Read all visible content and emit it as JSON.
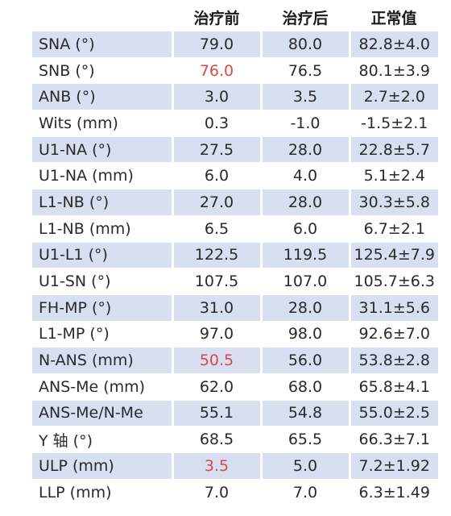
{
  "header": {
    "label": "",
    "pre": "治疗前",
    "post": "治疗后",
    "normal": "正常值"
  },
  "rows": [
    {
      "label": "SNA (°)",
      "pre": "79.0",
      "post": "80.0",
      "normal": "82.8±4.0",
      "shaded": true,
      "highlight_pre": false
    },
    {
      "label": "SNB (°)",
      "pre": "76.0",
      "post": "76.5",
      "normal": "80.1±3.9",
      "shaded": false,
      "highlight_pre": true
    },
    {
      "label": "ANB (°)",
      "pre": "3.0",
      "post": "3.5",
      "normal": "2.7±2.0",
      "shaded": true,
      "highlight_pre": false
    },
    {
      "label": "Wits (mm)",
      "pre": "0.3",
      "post": "-1.0",
      "normal": "-1.5±2.1",
      "shaded": false,
      "highlight_pre": false
    },
    {
      "label": "U1-NA (°)",
      "pre": "27.5",
      "post": "28.0",
      "normal": "22.8±5.7",
      "shaded": true,
      "highlight_pre": false
    },
    {
      "label": "U1-NA (mm)",
      "pre": "6.0",
      "post": "4.0",
      "normal": "5.1±2.4",
      "shaded": false,
      "highlight_pre": false
    },
    {
      "label": "L1-NB (°)",
      "pre": "27.0",
      "post": "28.0",
      "normal": "30.3±5.8",
      "shaded": true,
      "highlight_pre": false
    },
    {
      "label": "L1-NB (mm)",
      "pre": "6.5",
      "post": "6.0",
      "normal": "6.7±2.1",
      "shaded": false,
      "highlight_pre": false
    },
    {
      "label": "U1-L1 (°)",
      "pre": "122.5",
      "post": "119.5",
      "normal": "125.4±7.9",
      "shaded": true,
      "highlight_pre": false
    },
    {
      "label": "U1-SN (°)",
      "pre": "107.5",
      "post": "107.0",
      "normal": "105.7±6.3",
      "shaded": false,
      "highlight_pre": false
    },
    {
      "label": "FH-MP (°)",
      "pre": "31.0",
      "post": "28.0",
      "normal": "31.1±5.6",
      "shaded": true,
      "highlight_pre": false
    },
    {
      "label": "L1-MP (°)",
      "pre": "97.0",
      "post": "98.0",
      "normal": "92.6±7.0",
      "shaded": false,
      "highlight_pre": false
    },
    {
      "label": "N-ANS (mm)",
      "pre": "50.5",
      "post": "56.0",
      "normal": "53.8±2.8",
      "shaded": true,
      "highlight_pre": true
    },
    {
      "label": "ANS-Me (mm)",
      "pre": "62.0",
      "post": "68.0",
      "normal": "65.8±4.1",
      "shaded": false,
      "highlight_pre": false
    },
    {
      "label": "ANS-Me/N-Me",
      "pre": "55.1",
      "post": "54.8",
      "normal": "55.0±2.5",
      "shaded": true,
      "highlight_pre": false
    },
    {
      "label": "Y 轴 (°)",
      "pre": "68.5",
      "post": "65.5",
      "normal": "66.3±7.1",
      "shaded": false,
      "highlight_pre": false
    },
    {
      "label": "ULP (mm)",
      "pre": "3.5",
      "post": "5.0",
      "normal": "7.2±1.92",
      "shaded": true,
      "highlight_pre": true
    },
    {
      "label": "LLP (mm)",
      "pre": "7.0",
      "post": "7.0",
      "normal": "6.3±1.49",
      "shaded": false,
      "highlight_pre": false
    }
  ],
  "colors": {
    "shaded_row": "#d7dff0",
    "plain_row": "#ffffff",
    "highlight_text": "#d64a4a",
    "body_text": "#2a2a2a"
  }
}
